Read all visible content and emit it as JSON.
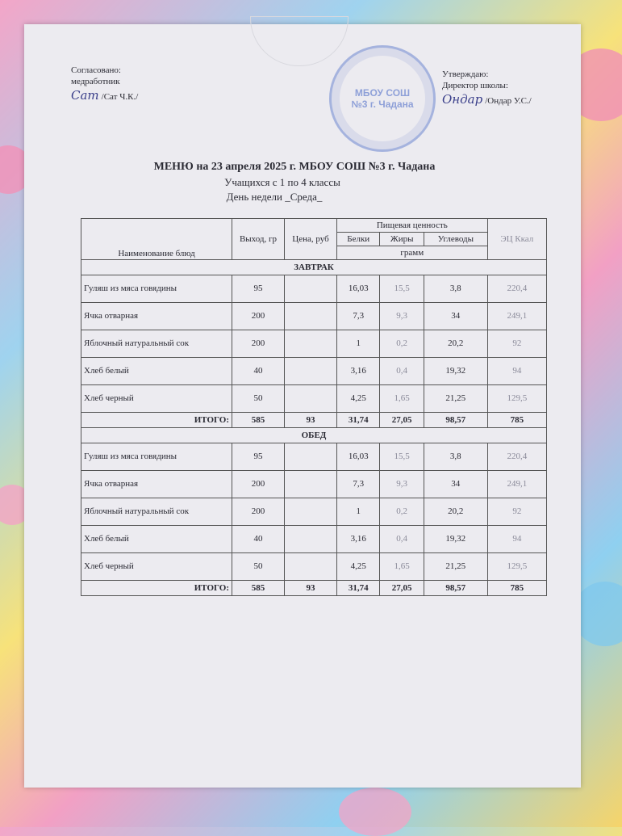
{
  "approval_left": {
    "line1": "Согласовано:",
    "line2": "медработник",
    "signature": "Сат",
    "name": "/Сат Ч.К./"
  },
  "approval_right": {
    "line1": "Утверждаю:",
    "line2": "Директор школы:",
    "signature": "Ондар",
    "name": "/Ондар У.С./"
  },
  "stamp": {
    "text": "МБОУ СОШ №3 г. Чадана"
  },
  "title": "МЕНЮ на 23 апреля 2025 г. МБОУ СОШ №3 г. Чадана",
  "subtitle": "Учащихся с 1 по 4 классы",
  "weekday": "День недели _Среда_",
  "table": {
    "headers": {
      "name": "Наименование блюд",
      "yield": "Выход, гр",
      "price": "Цена, руб",
      "nutrition": "Пищевая ценность",
      "protein": "Белки",
      "fat": "Жиры",
      "carbs": "Углеводы",
      "unit": "грамм",
      "kcal": "ЭЦ Ккал"
    },
    "sections": [
      {
        "title": "ЗАВТРАК",
        "rows": [
          [
            "Гуляш из мяса говядины",
            "95",
            "",
            "16,03",
            "15,5",
            "3,8",
            "220,4"
          ],
          [
            "Ячка отварная",
            "200",
            "",
            "7,3",
            "9,3",
            "34",
            "249,1"
          ],
          [
            "Яблочный натуральный сок",
            "200",
            "",
            "1",
            "0,2",
            "20,2",
            "92"
          ],
          [
            "Хлеб белый",
            "40",
            "",
            "3,16",
            "0,4",
            "19,32",
            "94"
          ],
          [
            "Хлеб черный",
            "50",
            "",
            "4,25",
            "1,65",
            "21,25",
            "129,5"
          ]
        ],
        "total": [
          "ИТОГО:",
          "585",
          "93",
          "31,74",
          "27,05",
          "98,57",
          "785"
        ]
      },
      {
        "title": "ОБЕД",
        "rows": [
          [
            "Гуляш из мяса говядины",
            "95",
            "",
            "16,03",
            "15,5",
            "3,8",
            "220,4"
          ],
          [
            "Ячка отварная",
            "200",
            "",
            "7,3",
            "9,3",
            "34",
            "249,1"
          ],
          [
            "Яблочный натуральный сок",
            "200",
            "",
            "1",
            "0,2",
            "20,2",
            "92"
          ],
          [
            "Хлеб белый",
            "40",
            "",
            "3,16",
            "0,4",
            "19,32",
            "94"
          ],
          [
            "Хлеб черный",
            "50",
            "",
            "4,25",
            "1,65",
            "21,25",
            "129,5"
          ]
        ],
        "total": [
          "ИТОГО:",
          "585",
          "93",
          "31,74",
          "27,05",
          "98,57",
          "785"
        ]
      }
    ]
  }
}
